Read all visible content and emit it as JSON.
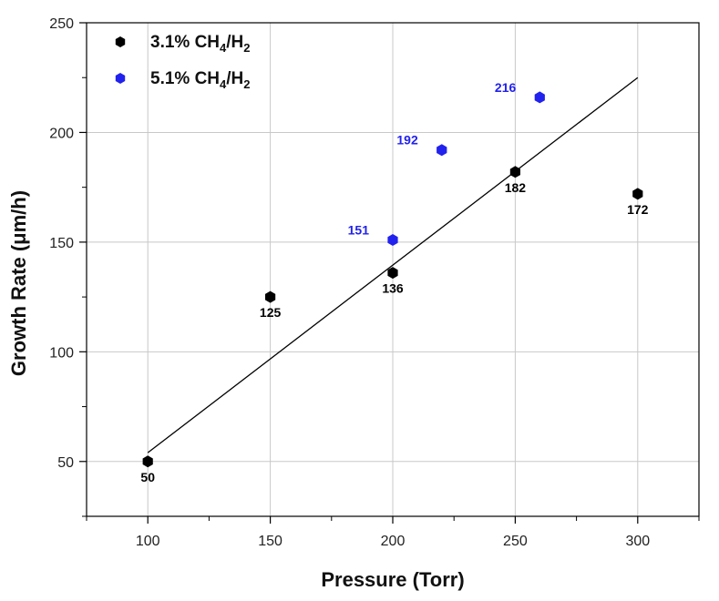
{
  "chart_data": {
    "type": "scatter",
    "xlabel": "Pressure (Torr)",
    "ylabel": "Growth Rate (μm/h)",
    "xlim": [
      75,
      325
    ],
    "ylim": [
      25,
      250
    ],
    "x_ticks": [
      100,
      150,
      200,
      250,
      300
    ],
    "y_ticks": [
      50,
      100,
      150,
      200,
      250
    ],
    "grid": true,
    "legend_position": "top-left",
    "series": [
      {
        "name_parts": [
          "3.1% CH",
          "4",
          "/H",
          "2"
        ],
        "color": "#000000",
        "marker": "hexagon",
        "points": [
          {
            "x": 100,
            "y": 50,
            "label": "50"
          },
          {
            "x": 150,
            "y": 125,
            "label": "125"
          },
          {
            "x": 200,
            "y": 136,
            "label": "136"
          },
          {
            "x": 250,
            "y": 182,
            "label": "182"
          },
          {
            "x": 300,
            "y": 172,
            "label": "172"
          }
        ]
      },
      {
        "name_parts": [
          "5.1% CH",
          "4",
          "/H",
          "2"
        ],
        "color": "#2222ee",
        "marker": "hexagon",
        "points": [
          {
            "x": 200,
            "y": 151,
            "label": "151"
          },
          {
            "x": 220,
            "y": 192,
            "label": "192"
          },
          {
            "x": 260,
            "y": 216,
            "label": "216"
          }
        ]
      }
    ],
    "fit_line": {
      "x": [
        100,
        300
      ],
      "y": [
        54,
        225
      ],
      "color": "#000000"
    }
  }
}
